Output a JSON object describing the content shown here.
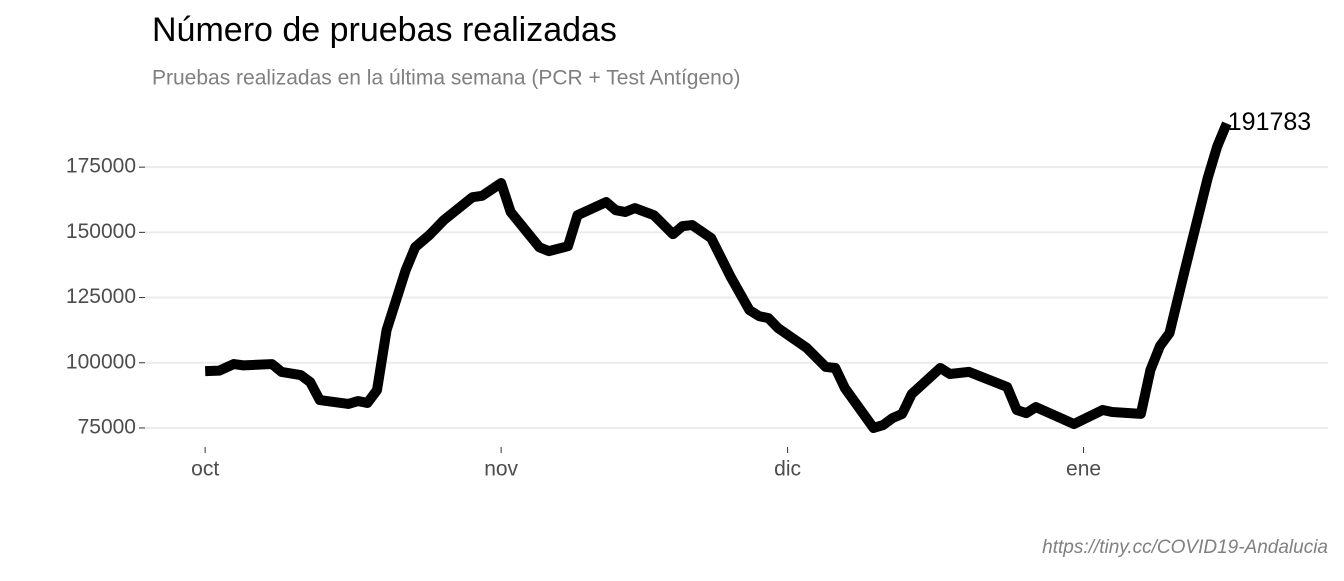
{
  "chart_data": {
    "type": "line",
    "title": "Número de pruebas realizadas",
    "subtitle": "Pruebas realizadas en la última semana (PCR + Test Antígeno)",
    "caption": "https://tiny.cc/COVID19-Andalucia",
    "x": [
      0,
      1.5,
      3,
      4,
      7,
      8,
      10,
      11,
      12,
      15,
      16,
      17,
      18,
      19,
      21,
      22,
      23.5,
      25,
      28,
      29,
      31,
      32,
      35,
      36,
      38,
      39,
      42,
      43,
      44,
      45,
      47,
      49,
      50,
      51,
      53,
      55,
      57,
      58,
      59,
      60,
      63,
      65,
      66,
      67,
      70,
      71,
      72,
      73,
      74,
      77,
      78,
      80,
      84,
      85,
      86,
      87,
      91,
      94,
      95,
      98,
      99,
      100,
      101,
      102.6,
      105,
      106,
      107
    ],
    "values": [
      96800,
      97000,
      99500,
      99000,
      99500,
      96500,
      95300,
      92600,
      85700,
      84200,
      85300,
      84600,
      89500,
      112500,
      135500,
      144300,
      149000,
      154700,
      163500,
      164000,
      168900,
      157800,
      144300,
      142800,
      144700,
      156600,
      161600,
      158500,
      157800,
      159300,
      156600,
      149300,
      152400,
      152800,
      147800,
      133200,
      120200,
      117900,
      117100,
      113300,
      105700,
      98400,
      98000,
      90300,
      75000,
      76100,
      78800,
      80400,
      88000,
      98000,
      95700,
      96500,
      90700,
      81900,
      80700,
      83000,
      76500,
      81900,
      81100,
      80400,
      97200,
      106400,
      111400,
      135500,
      170800,
      183000,
      191783
    ],
    "color": "#000000",
    "xlim": [
      -6.3,
      117.6
    ],
    "xticks": [
      {
        "value": 0,
        "label": "oct"
      },
      {
        "value": 31,
        "label": "nov"
      },
      {
        "value": 61,
        "label": "dic"
      },
      {
        "value": 92,
        "label": "ene"
      }
    ],
    "ylim": [
      70000,
      195000
    ],
    "yticks": [
      75000,
      100000,
      125000,
      150000,
      175000
    ],
    "grid": true
  }
}
